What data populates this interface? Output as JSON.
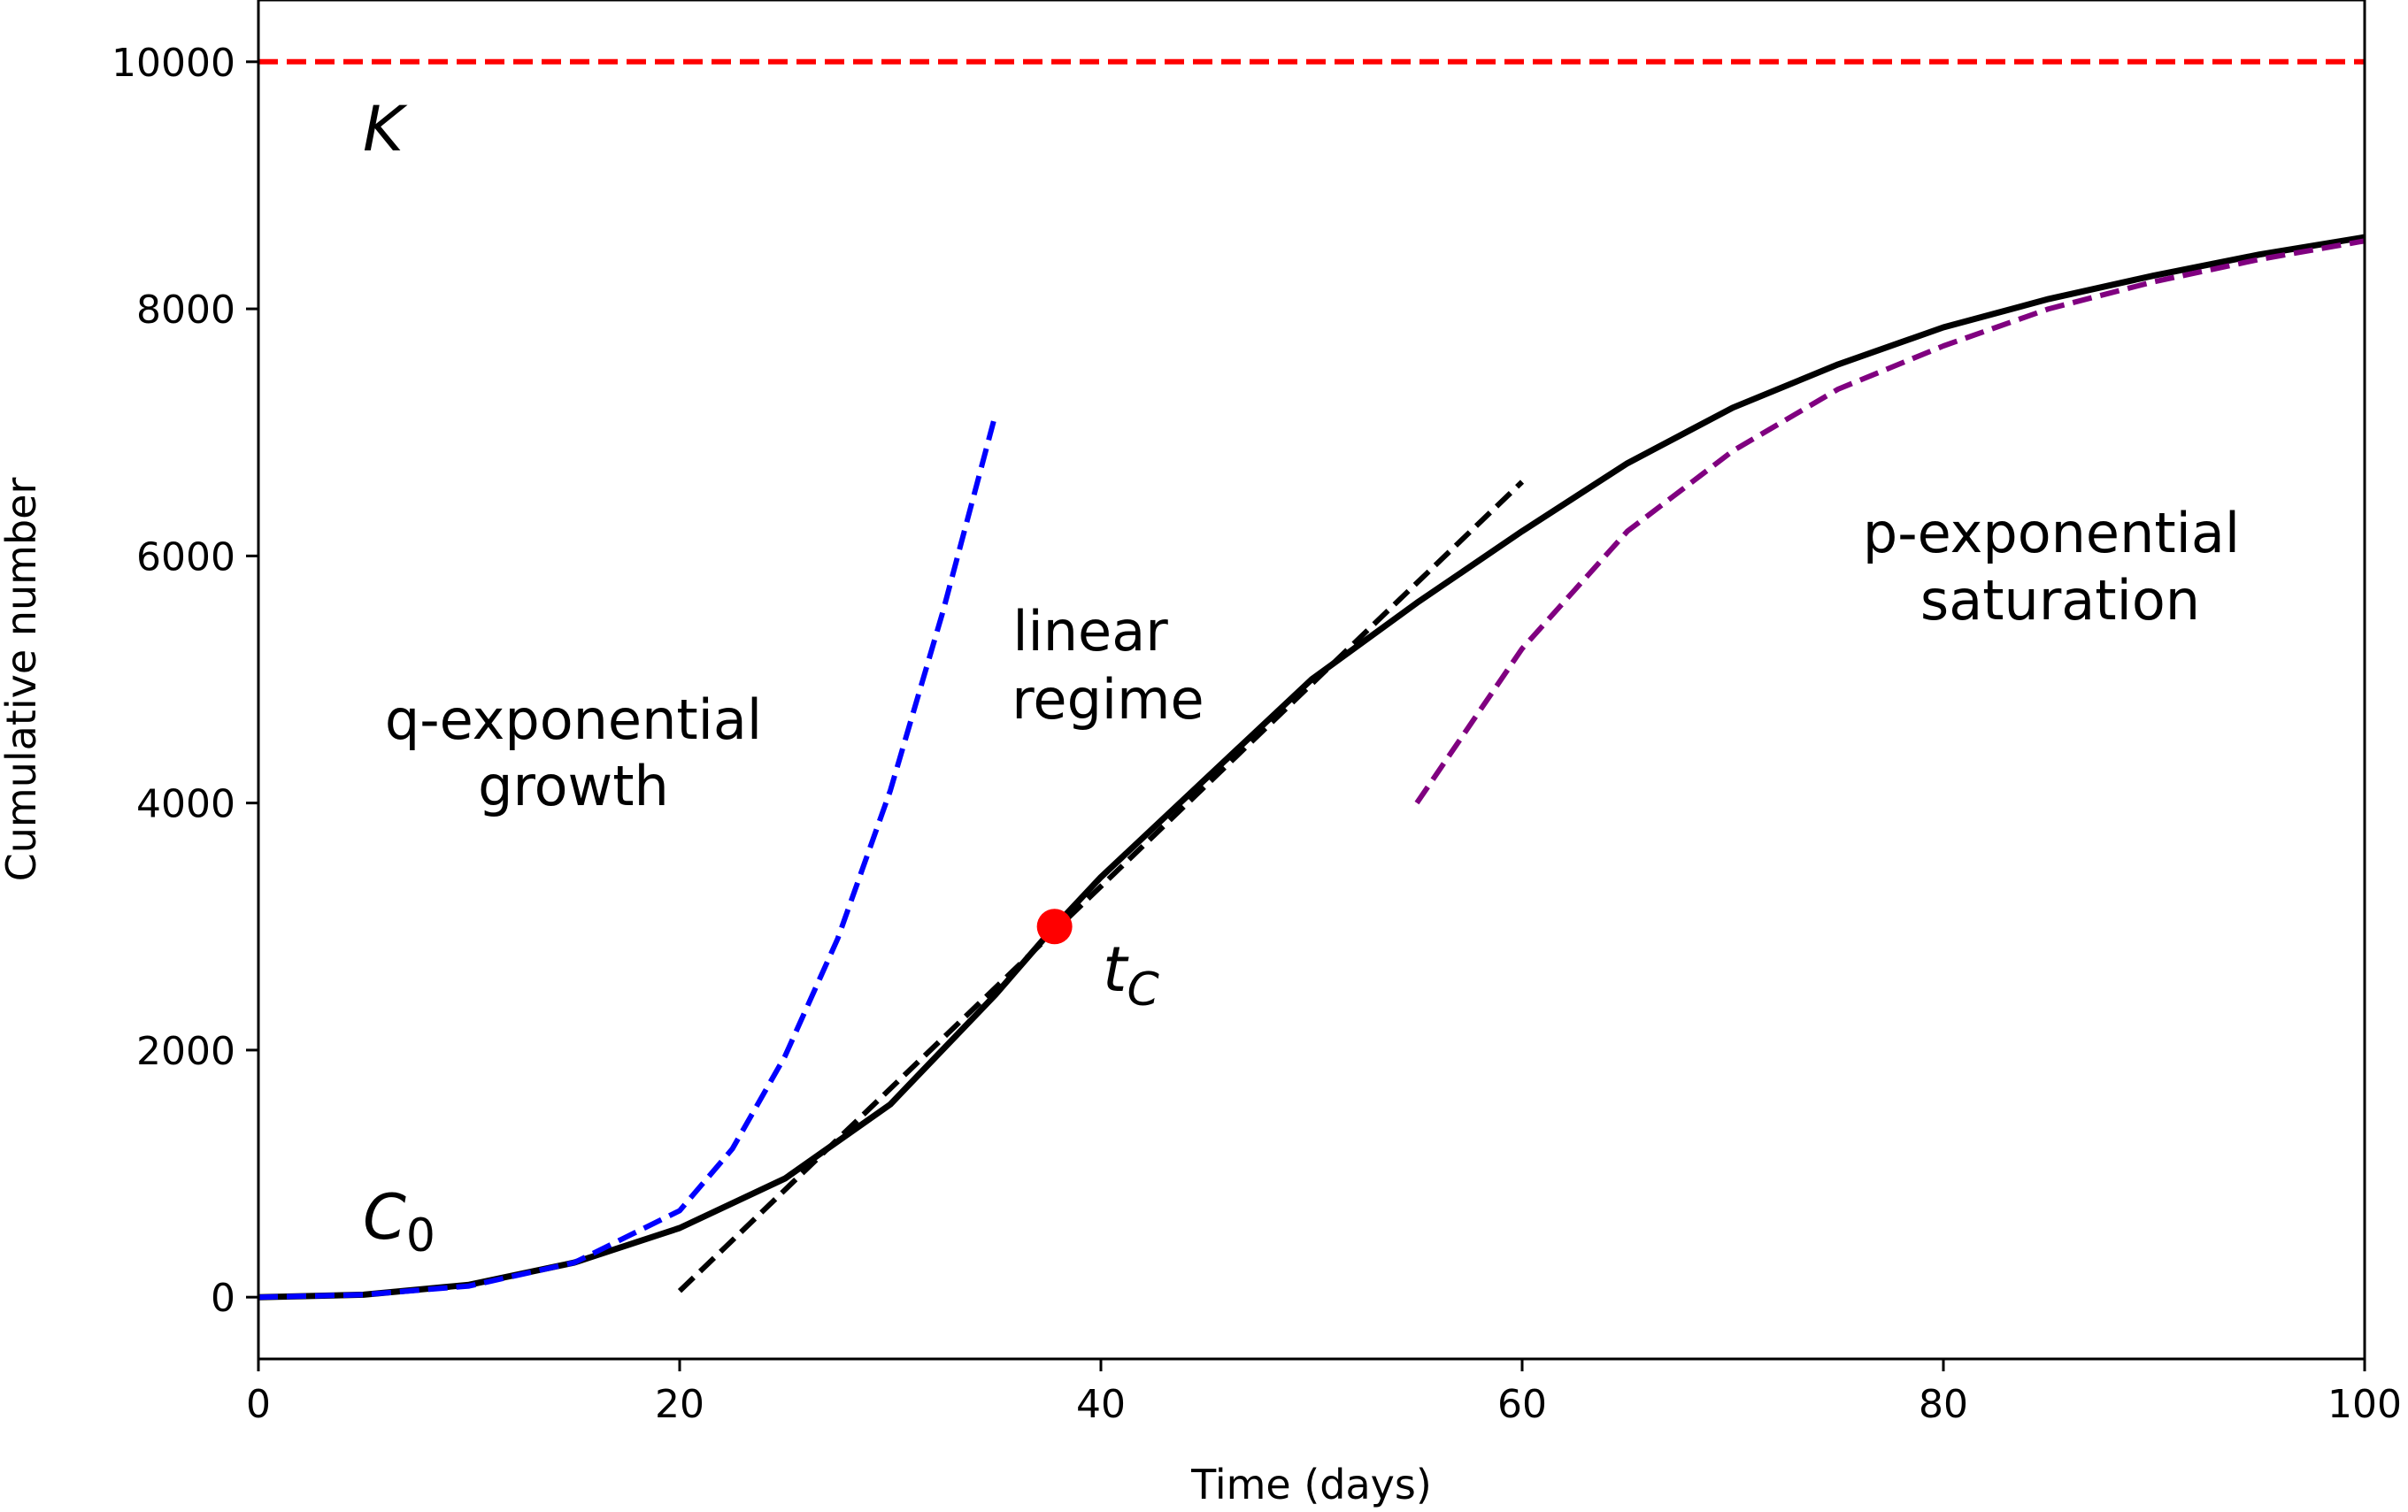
{
  "chart_data": {
    "type": "line",
    "title": "",
    "xlabel": "Time (days)",
    "ylabel": "Cumulative number",
    "xlim": [
      0,
      100
    ],
    "ylim": [
      -500,
      10500
    ],
    "grid": false,
    "x_ticks": [
      0,
      20,
      40,
      60,
      80,
      100
    ],
    "y_ticks": [
      0,
      2000,
      4000,
      6000,
      8000,
      10000
    ],
    "x_tick_labels": [
      "0",
      "20",
      "40",
      "60",
      "80",
      "100"
    ],
    "y_tick_labels": [
      "0",
      "2000",
      "4000",
      "6000",
      "8000",
      "10000"
    ],
    "series": [
      {
        "color": "#000000",
        "style": "solid",
        "x": [
          0,
          5,
          10,
          15,
          20,
          25,
          30,
          35,
          37.8,
          40,
          45,
          50,
          55,
          60,
          65,
          70,
          75,
          80,
          85,
          90,
          95,
          100
        ],
        "y": [
          0,
          20,
          100,
          280,
          560,
          960,
          1560,
          2450,
          3000,
          3400,
          4200,
          5000,
          5620,
          6200,
          6750,
          7200,
          7550,
          7850,
          8080,
          8270,
          8440,
          8580
        ]
      },
      {
        "color": "#0000ff",
        "style": "dashed",
        "x": [
          0,
          5,
          10,
          15,
          20,
          22.5,
          25,
          27.5,
          30,
          32.5,
          35
        ],
        "y": [
          0,
          20,
          90,
          280,
          700,
          1200,
          1950,
          2900,
          4100,
          5550,
          7150
        ]
      },
      {
        "color": "#000000",
        "style": "dashed",
        "x": [
          20,
          60
        ],
        "y": [
          50,
          6600
        ]
      },
      {
        "color": "#800080",
        "style": "dashed",
        "x": [
          55,
          60,
          65,
          70,
          75,
          80,
          85,
          90,
          95,
          100
        ],
        "y": [
          4000,
          5250,
          6200,
          6850,
          7350,
          7700,
          8000,
          8220,
          8400,
          8550
        ]
      },
      {
        "color": "#ff0000",
        "style": "dashed",
        "x": [
          0,
          100
        ],
        "y": [
          10000,
          10000
        ]
      }
    ],
    "points": [
      {
        "x": 37.8,
        "y": 3000,
        "color": "#ff0000"
      }
    ],
    "annotations": [
      {
        "text": "K",
        "x": 5,
        "y": 9500
      },
      {
        "text": "C",
        "subscript": "0",
        "x": 5,
        "y": 600
      },
      {
        "text": "t",
        "subscript": "C",
        "x": 40,
        "y": 2600
      },
      {
        "text": "q-exponential",
        "x": 15,
        "y": 4700
      },
      {
        "text": "growth",
        "x": 15,
        "y": 4100
      },
      {
        "text": "linear",
        "x": 41,
        "y": 5400
      },
      {
        "text": "regime",
        "x": 41,
        "y": 4840
      },
      {
        "text": "p-exponential",
        "x": 85,
        "y": 6200
      },
      {
        "text": "saturation",
        "x": 85,
        "y": 5640
      }
    ]
  }
}
